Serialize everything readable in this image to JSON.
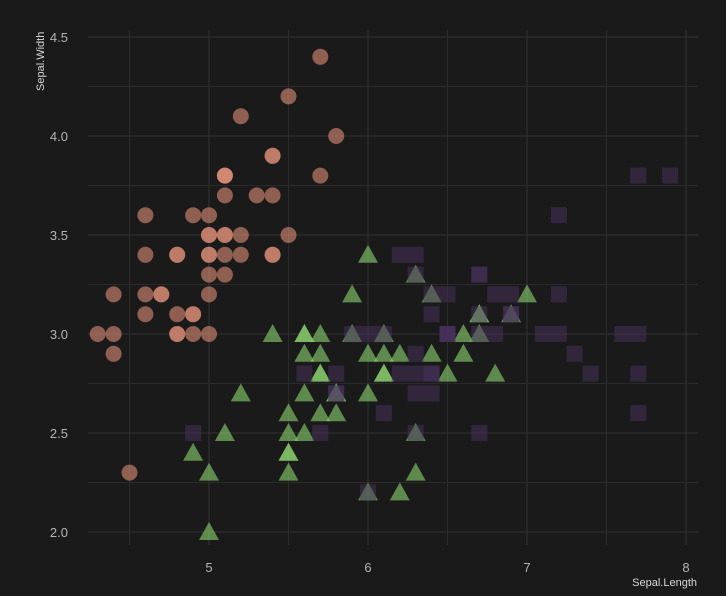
{
  "chart_data": {
    "type": "scatter",
    "title": "",
    "xlabel": "Sepal.Length",
    "ylabel": "Sepal.Width",
    "xlim": [
      4.2,
      8.08
    ],
    "ylim": [
      1.94,
      4.54
    ],
    "xticks": [
      "5",
      "6",
      "7",
      "8"
    ],
    "yticks": [
      "2.0",
      "2.5",
      "3.0",
      "3.5",
      "4.0",
      "4.5"
    ],
    "grid": true,
    "legend": "none",
    "series": [
      {
        "shape": "circle",
        "color": "#dd8f78",
        "points": [
          [
            5.1,
            3.5
          ],
          [
            4.9,
            3.0
          ],
          [
            4.7,
            3.2
          ],
          [
            4.6,
            3.1
          ],
          [
            5.0,
            3.6
          ],
          [
            5.4,
            3.9
          ],
          [
            4.6,
            3.4
          ],
          [
            5.0,
            3.4
          ],
          [
            4.4,
            2.9
          ],
          [
            4.9,
            3.1
          ],
          [
            5.4,
            3.7
          ],
          [
            4.8,
            3.4
          ],
          [
            4.8,
            3.0
          ],
          [
            4.3,
            3.0
          ],
          [
            5.8,
            4.0
          ],
          [
            5.7,
            4.4
          ],
          [
            5.4,
            3.9
          ],
          [
            5.1,
            3.5
          ],
          [
            5.7,
            3.8
          ],
          [
            5.1,
            3.8
          ],
          [
            5.4,
            3.4
          ],
          [
            5.1,
            3.7
          ],
          [
            4.6,
            3.6
          ],
          [
            5.1,
            3.3
          ],
          [
            4.8,
            3.4
          ],
          [
            5.0,
            3.0
          ],
          [
            5.0,
            3.4
          ],
          [
            5.2,
            3.5
          ],
          [
            5.2,
            3.4
          ],
          [
            4.7,
            3.2
          ],
          [
            4.8,
            3.1
          ],
          [
            5.4,
            3.4
          ],
          [
            5.2,
            4.1
          ],
          [
            5.5,
            4.2
          ],
          [
            4.9,
            3.1
          ],
          [
            5.0,
            3.2
          ],
          [
            5.5,
            3.5
          ],
          [
            4.9,
            3.6
          ],
          [
            4.4,
            3.0
          ],
          [
            5.1,
            3.4
          ],
          [
            5.0,
            3.5
          ],
          [
            4.5,
            2.3
          ],
          [
            4.4,
            3.2
          ],
          [
            5.0,
            3.5
          ],
          [
            5.1,
            3.8
          ],
          [
            4.8,
            3.0
          ],
          [
            5.1,
            3.8
          ],
          [
            4.6,
            3.2
          ],
          [
            5.3,
            3.7
          ],
          [
            5.0,
            3.3
          ]
        ]
      },
      {
        "shape": "triangle",
        "color": "#8dd572",
        "points": [
          [
            7.0,
            3.2
          ],
          [
            6.4,
            3.2
          ],
          [
            6.9,
            3.1
          ],
          [
            5.5,
            2.3
          ],
          [
            6.5,
            2.8
          ],
          [
            5.7,
            2.8
          ],
          [
            6.3,
            3.3
          ],
          [
            4.9,
            2.4
          ],
          [
            6.6,
            2.9
          ],
          [
            5.2,
            2.7
          ],
          [
            5.0,
            2.0
          ],
          [
            5.9,
            3.0
          ],
          [
            6.0,
            2.2
          ],
          [
            6.1,
            2.9
          ],
          [
            5.6,
            2.9
          ],
          [
            6.7,
            3.1
          ],
          [
            5.6,
            3.0
          ],
          [
            5.8,
            2.7
          ],
          [
            6.2,
            2.2
          ],
          [
            5.6,
            2.5
          ],
          [
            5.9,
            3.2
          ],
          [
            6.1,
            2.8
          ],
          [
            6.3,
            2.5
          ],
          [
            6.1,
            2.8
          ],
          [
            6.4,
            2.9
          ],
          [
            6.6,
            3.0
          ],
          [
            6.8,
            2.8
          ],
          [
            6.7,
            3.0
          ],
          [
            6.0,
            2.9
          ],
          [
            5.7,
            2.6
          ],
          [
            5.5,
            2.4
          ],
          [
            5.5,
            2.4
          ],
          [
            5.8,
            2.7
          ],
          [
            6.0,
            2.7
          ],
          [
            5.4,
            3.0
          ],
          [
            6.0,
            3.4
          ],
          [
            6.7,
            3.1
          ],
          [
            6.3,
            2.3
          ],
          [
            5.6,
            3.0
          ],
          [
            5.5,
            2.5
          ],
          [
            5.5,
            2.6
          ],
          [
            6.1,
            3.0
          ],
          [
            5.8,
            2.6
          ],
          [
            5.0,
            2.3
          ],
          [
            5.6,
            2.7
          ],
          [
            5.7,
            3.0
          ],
          [
            5.7,
            2.9
          ],
          [
            6.2,
            2.9
          ],
          [
            5.1,
            2.5
          ],
          [
            5.7,
            2.8
          ]
        ]
      },
      {
        "shape": "square",
        "color": "#4a325f",
        "points": [
          [
            6.3,
            3.3
          ],
          [
            5.8,
            2.7
          ],
          [
            7.1,
            3.0
          ],
          [
            6.3,
            2.9
          ],
          [
            6.5,
            3.0
          ],
          [
            7.6,
            3.0
          ],
          [
            4.9,
            2.5
          ],
          [
            7.3,
            2.9
          ],
          [
            6.7,
            2.5
          ],
          [
            7.2,
            3.6
          ],
          [
            6.5,
            3.2
          ],
          [
            6.4,
            2.7
          ],
          [
            6.8,
            3.0
          ],
          [
            5.7,
            2.5
          ],
          [
            5.8,
            2.8
          ],
          [
            6.4,
            3.2
          ],
          [
            6.5,
            3.0
          ],
          [
            7.7,
            3.8
          ],
          [
            7.7,
            2.6
          ],
          [
            6.0,
            2.2
          ],
          [
            6.9,
            3.2
          ],
          [
            5.6,
            2.8
          ],
          [
            7.7,
            2.8
          ],
          [
            6.3,
            2.7
          ],
          [
            6.7,
            3.3
          ],
          [
            7.2,
            3.2
          ],
          [
            6.2,
            2.8
          ],
          [
            6.1,
            3.0
          ],
          [
            6.4,
            2.8
          ],
          [
            7.2,
            3.0
          ],
          [
            7.4,
            2.8
          ],
          [
            7.9,
            3.8
          ],
          [
            6.4,
            2.8
          ],
          [
            6.3,
            2.8
          ],
          [
            6.1,
            2.6
          ],
          [
            7.7,
            3.0
          ],
          [
            6.3,
            3.4
          ],
          [
            6.4,
            3.1
          ],
          [
            6.0,
            3.0
          ],
          [
            6.9,
            3.1
          ],
          [
            6.7,
            3.1
          ],
          [
            6.9,
            3.1
          ],
          [
            5.8,
            2.7
          ],
          [
            6.8,
            3.2
          ],
          [
            6.7,
            3.3
          ],
          [
            6.7,
            3.0
          ],
          [
            6.3,
            2.5
          ],
          [
            6.5,
            3.0
          ],
          [
            6.2,
            3.4
          ],
          [
            5.9,
            3.0
          ]
        ]
      }
    ]
  }
}
